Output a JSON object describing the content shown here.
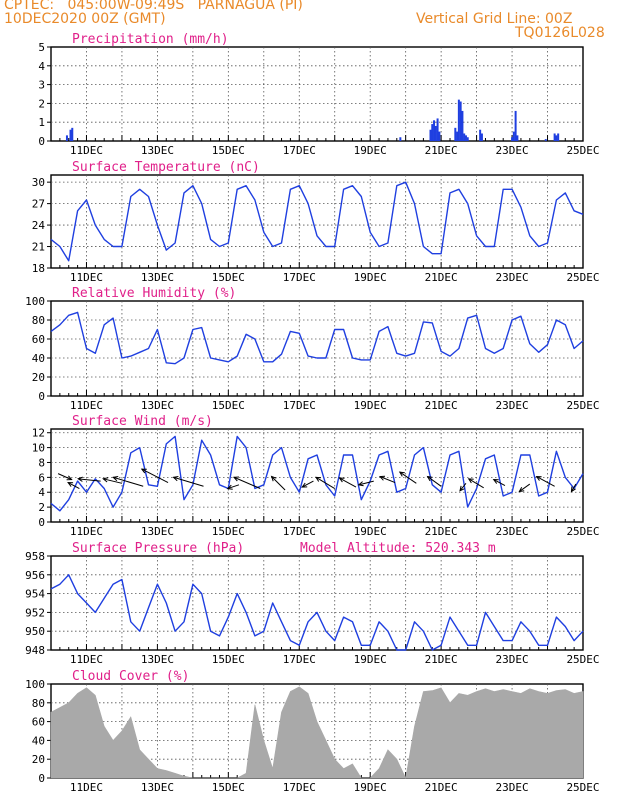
{
  "header": {
    "line1_left": "CPTEC:   045:00W-09:49S   PARNAGUA (PI)",
    "line2_left": "10DEC2020 00Z (GMT)",
    "line2_right": "Vertical Grid Line: 00Z",
    "line3_right": "TQ0126L028"
  },
  "colors": {
    "header": "#e98a2a",
    "title": "#e0208a",
    "series": "#1f3fe0",
    "fill": "#a9a9a9",
    "wind_arrow": "#000000"
  },
  "date_labels": [
    "11DEC",
    "13DEC",
    "15DEC",
    "17DEC",
    "19DEC",
    "21DEC",
    "23DEC",
    "25DEC"
  ],
  "chart_data": [
    {
      "id": "precip",
      "type": "bar",
      "title": "Precipitation (mm/h)",
      "x_unit": "days since 10DEC2020 00Z",
      "ylim": [
        0,
        5
      ],
      "yticks": [
        0,
        1,
        2,
        3,
        4,
        5
      ],
      "x": [
        0.45,
        0.55,
        0.6,
        9.85,
        10.7,
        10.75,
        10.8,
        10.85,
        10.9,
        10.95,
        11.4,
        11.45,
        11.5,
        11.55,
        11.6,
        11.65,
        11.7,
        11.75,
        12.1,
        12.15,
        13.0,
        13.05,
        13.1,
        13.15,
        13.95,
        14.2,
        14.25,
        14.3
      ],
      "values": [
        0.3,
        0.6,
        0.7,
        0.2,
        0.6,
        0.9,
        1.1,
        0.8,
        1.2,
        0.5,
        0.7,
        0.5,
        2.2,
        2.1,
        1.6,
        0.4,
        0.3,
        0.2,
        0.6,
        0.4,
        0.2,
        0.5,
        1.6,
        0.3,
        0.1,
        0.4,
        0.3,
        0.4
      ]
    },
    {
      "id": "temp",
      "type": "line",
      "title": "Surface Temperature (nC)",
      "ylim": [
        18,
        31
      ],
      "yticks": [
        18,
        21,
        24,
        27,
        30
      ],
      "x": [
        0,
        0.25,
        0.5,
        0.75,
        1,
        1.25,
        1.5,
        1.75,
        2,
        2.25,
        2.5,
        2.75,
        3,
        3.25,
        3.5,
        3.75,
        4,
        4.25,
        4.5,
        4.75,
        5,
        5.25,
        5.5,
        5.75,
        6,
        6.25,
        6.5,
        6.75,
        7,
        7.25,
        7.5,
        7.75,
        8,
        8.25,
        8.5,
        8.75,
        9,
        9.25,
        9.5,
        9.75,
        10,
        10.25,
        10.5,
        10.75,
        11,
        11.25,
        11.5,
        11.75,
        12,
        12.25,
        12.5,
        12.75,
        13,
        13.25,
        13.5,
        13.75,
        14,
        14.25,
        14.5,
        14.75,
        15
      ],
      "values": [
        22,
        21,
        19,
        26,
        27.5,
        24,
        22,
        21,
        21,
        28,
        29,
        28,
        24,
        20.5,
        21.5,
        28.5,
        29.5,
        27,
        22,
        21,
        21.5,
        29,
        29.5,
        27.5,
        23,
        21,
        21.5,
        29,
        29.5,
        27,
        22.5,
        21,
        21,
        29,
        29.5,
        28,
        23,
        21,
        21.5,
        29.5,
        30,
        27,
        21,
        20,
        20,
        28.5,
        29,
        27,
        22.5,
        21,
        21,
        29,
        29,
        26.5,
        22.5,
        21,
        21.5,
        27.5,
        28.5,
        26,
        25.5
      ]
    },
    {
      "id": "rh",
      "type": "line",
      "title": "Relative Humidity (%)",
      "ylim": [
        0,
        100
      ],
      "yticks": [
        0,
        20,
        40,
        60,
        80,
        100
      ],
      "x": [
        0,
        0.25,
        0.5,
        0.75,
        1,
        1.25,
        1.5,
        1.75,
        2,
        2.25,
        2.5,
        2.75,
        3,
        3.25,
        3.5,
        3.75,
        4,
        4.25,
        4.5,
        4.75,
        5,
        5.25,
        5.5,
        5.75,
        6,
        6.25,
        6.5,
        6.75,
        7,
        7.25,
        7.5,
        7.75,
        8,
        8.25,
        8.5,
        8.75,
        9,
        9.25,
        9.5,
        9.75,
        10,
        10.25,
        10.5,
        10.75,
        11,
        11.25,
        11.5,
        11.75,
        12,
        12.25,
        12.5,
        12.75,
        13,
        13.25,
        13.5,
        13.75,
        14,
        14.25,
        14.5,
        14.75,
        15
      ],
      "values": [
        68,
        75,
        85,
        88,
        50,
        45,
        75,
        82,
        40,
        42,
        46,
        50,
        70,
        35,
        34,
        40,
        70,
        72,
        40,
        38,
        36,
        42,
        65,
        60,
        36,
        36,
        44,
        68,
        66,
        42,
        40,
        40,
        70,
        70,
        40,
        38,
        38,
        68,
        73,
        45,
        42,
        45,
        78,
        77,
        47,
        42,
        50,
        82,
        85,
        50,
        45,
        50,
        80,
        84,
        55,
        46,
        54,
        80,
        75,
        50,
        58
      ]
    },
    {
      "id": "wind",
      "type": "line",
      "title": "Surface Wind (m/s)",
      "ylim": [
        0,
        12.5
      ],
      "yticks": [
        0,
        2,
        4,
        6,
        8,
        10,
        12
      ],
      "x": [
        0,
        0.25,
        0.5,
        0.75,
        1,
        1.25,
        1.5,
        1.75,
        2,
        2.25,
        2.5,
        2.75,
        3,
        3.25,
        3.5,
        3.75,
        4,
        4.25,
        4.5,
        4.75,
        5,
        5.25,
        5.5,
        5.75,
        6,
        6.25,
        6.5,
        6.75,
        7,
        7.25,
        7.5,
        7.75,
        8,
        8.25,
        8.5,
        8.75,
        9,
        9.25,
        9.5,
        9.75,
        10,
        10.25,
        10.5,
        10.75,
        11,
        11.25,
        11.5,
        11.75,
        12,
        12.25,
        12.5,
        12.75,
        13,
        13.25,
        13.5,
        13.75,
        14,
        14.25,
        14.5,
        14.75,
        15
      ],
      "values": [
        2.5,
        1.5,
        3,
        5.5,
        4,
        5.8,
        4.5,
        2,
        4,
        9.3,
        10,
        5,
        4.8,
        10.5,
        11.5,
        3,
        5,
        11,
        9,
        5,
        4.5,
        11.5,
        10,
        4.5,
        5,
        9,
        10,
        6,
        4,
        8.5,
        9,
        5,
        3.5,
        9,
        9,
        3,
        5.5,
        9,
        9.5,
        4,
        4.5,
        9,
        10,
        5,
        4,
        9,
        9.5,
        2,
        4.5,
        8.5,
        9,
        3.5,
        4,
        9,
        9,
        3.5,
        4,
        9.5,
        6,
        4.5,
        6.5
      ],
      "barbs": [
        {
          "x": 0.2,
          "y": 6.5,
          "u": 1.8,
          "v": -0.8
        },
        {
          "x": 0.8,
          "y": 4.5,
          "u": -1.5,
          "v": 0.8
        },
        {
          "x": 1.4,
          "y": 5.5,
          "u": -3,
          "v": 0.3
        },
        {
          "x": 2.0,
          "y": 5.2,
          "u": -2.5,
          "v": 0.6
        },
        {
          "x": 2.6,
          "y": 4.8,
          "u": -4,
          "v": 1.2
        },
        {
          "x": 3.3,
          "y": 5.3,
          "u": -3.5,
          "v": 1.8
        },
        {
          "x": 4.3,
          "y": 4.8,
          "u": -4,
          "v": 1.2
        },
        {
          "x": 5.3,
          "y": 5,
          "u": -1.5,
          "v": -0.5
        },
        {
          "x": 5.9,
          "y": 4.5,
          "u": -3.5,
          "v": 1.5
        },
        {
          "x": 6.6,
          "y": 4.3,
          "u": -1.8,
          "v": 1.8
        },
        {
          "x": 7.4,
          "y": 5.5,
          "u": -1.5,
          "v": -0.8
        },
        {
          "x": 8.0,
          "y": 4.5,
          "u": -2.5,
          "v": 1.5
        },
        {
          "x": 8.6,
          "y": 4.7,
          "u": -2.2,
          "v": 1.2
        },
        {
          "x": 9.1,
          "y": 5.5,
          "u": -2,
          "v": -0.5
        },
        {
          "x": 9.7,
          "y": 5.3,
          "u": -2,
          "v": 0.8
        },
        {
          "x": 10.3,
          "y": 5.2,
          "u": -2.2,
          "v": 1.5
        },
        {
          "x": 11.0,
          "y": 4.8,
          "u": -1.8,
          "v": 1.3
        },
        {
          "x": 11.7,
          "y": 5.2,
          "u": -0.8,
          "v": -1
        },
        {
          "x": 12.2,
          "y": 4.6,
          "u": -2,
          "v": 1.2
        },
        {
          "x": 12.8,
          "y": 4.9,
          "u": -1.5,
          "v": 0.8
        },
        {
          "x": 13.5,
          "y": 5.1,
          "u": -1.4,
          "v": -1
        },
        {
          "x": 14.2,
          "y": 4.8,
          "u": -2.4,
          "v": 1.3
        },
        {
          "x": 14.8,
          "y": 5.1,
          "u": -0.6,
          "v": -1
        }
      ]
    },
    {
      "id": "pressure",
      "type": "line",
      "title": "Surface Pressure (hPa)",
      "annotation": "Model Altitude: 520.343 m",
      "ylim": [
        948,
        958
      ],
      "yticks": [
        948,
        950,
        952,
        954,
        956,
        958
      ],
      "x": [
        0,
        0.25,
        0.5,
        0.75,
        1,
        1.25,
        1.5,
        1.75,
        2,
        2.25,
        2.5,
        2.75,
        3,
        3.25,
        3.5,
        3.75,
        4,
        4.25,
        4.5,
        4.75,
        5,
        5.25,
        5.5,
        5.75,
        6,
        6.25,
        6.5,
        6.75,
        7,
        7.25,
        7.5,
        7.75,
        8,
        8.25,
        8.5,
        8.75,
        9,
        9.25,
        9.5,
        9.75,
        10,
        10.25,
        10.5,
        10.75,
        11,
        11.25,
        11.5,
        11.75,
        12,
        12.25,
        12.5,
        12.75,
        13,
        13.25,
        13.5,
        13.75,
        14,
        14.25,
        14.5,
        14.75,
        15
      ],
      "values": [
        954.5,
        955,
        956,
        954,
        953,
        952,
        953.5,
        955,
        955.5,
        951,
        950,
        952.5,
        955,
        953,
        950,
        951,
        955,
        954,
        950,
        949.5,
        951.5,
        954,
        952,
        949.5,
        950,
        953,
        951,
        949,
        948.5,
        951,
        952,
        950,
        949,
        951.5,
        951,
        948.5,
        948.5,
        951,
        950,
        948,
        948,
        951,
        950,
        948,
        948.5,
        951.5,
        950,
        948.5,
        948.5,
        952,
        950.5,
        949,
        949,
        951,
        950,
        948.5,
        948.5,
        951.5,
        950.5,
        949,
        950
      ]
    },
    {
      "id": "cloud",
      "type": "area",
      "title": "Cloud Cover (%)",
      "ylim": [
        0,
        100
      ],
      "yticks": [
        0,
        20,
        40,
        60,
        80,
        100
      ],
      "x": [
        0,
        0.25,
        0.5,
        0.75,
        1,
        1.25,
        1.5,
        1.75,
        2,
        2.25,
        2.5,
        2.75,
        3,
        3.25,
        3.5,
        3.75,
        4,
        4.25,
        4.5,
        4.75,
        5,
        5.25,
        5.5,
        5.75,
        6,
        6.25,
        6.5,
        6.75,
        7,
        7.25,
        7.5,
        7.75,
        8,
        8.25,
        8.5,
        8.75,
        9,
        9.25,
        9.5,
        9.75,
        10,
        10.25,
        10.5,
        10.75,
        11,
        11.25,
        11.5,
        11.75,
        12,
        12.25,
        12.5,
        12.75,
        13,
        13.25,
        13.5,
        13.75,
        14,
        14.25,
        14.5,
        14.75,
        15
      ],
      "values": [
        70,
        75,
        80,
        90,
        96,
        88,
        55,
        40,
        50,
        65,
        30,
        20,
        10,
        8,
        5,
        2,
        0,
        0,
        0,
        0,
        0,
        0,
        5,
        78,
        40,
        10,
        70,
        92,
        97,
        90,
        60,
        40,
        20,
        10,
        15,
        0,
        0,
        10,
        30,
        20,
        0,
        55,
        92,
        93,
        96,
        80,
        90,
        88,
        92,
        95,
        92,
        94,
        92,
        90,
        95,
        92,
        90,
        93,
        94,
        90,
        92
      ]
    }
  ]
}
